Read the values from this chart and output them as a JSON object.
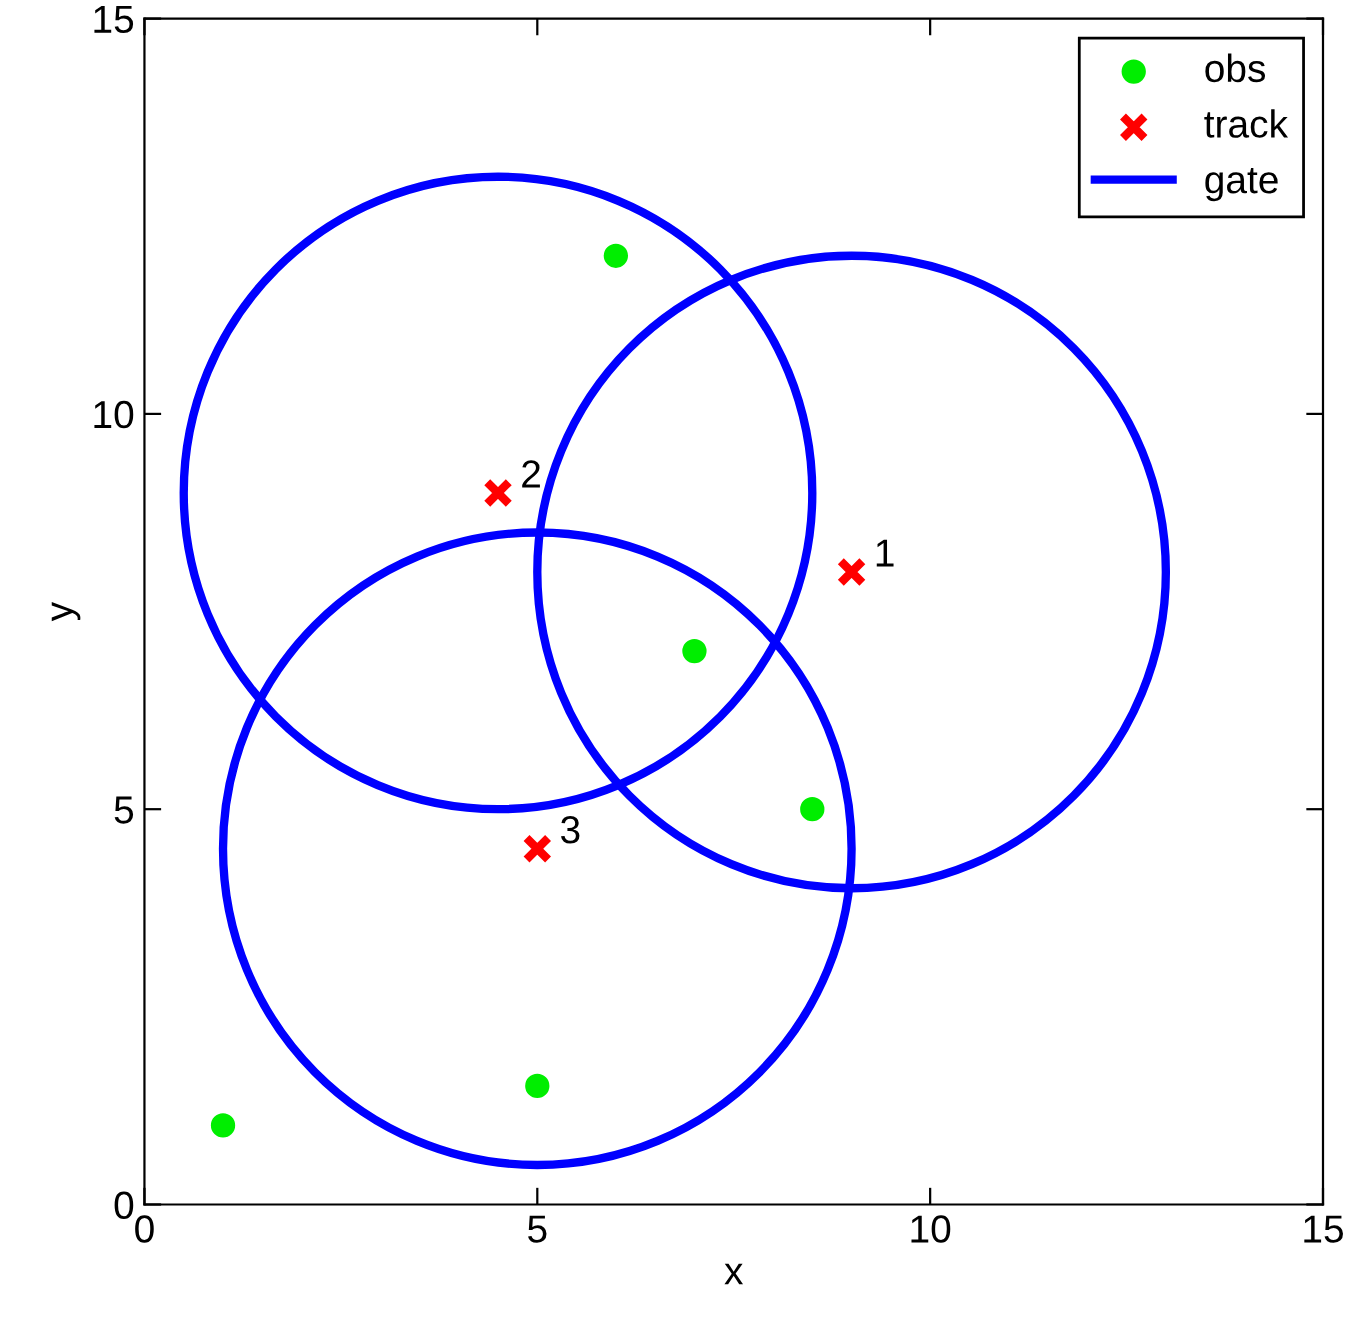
{
  "chart_data": {
    "type": "scatter",
    "xlabel": "x",
    "ylabel": "y",
    "xlim": [
      0,
      15
    ],
    "ylim": [
      0,
      15
    ],
    "xticks": [
      0,
      5,
      10,
      15
    ],
    "yticks": [
      0,
      5,
      10,
      15
    ],
    "grid": false,
    "legend": "top right",
    "series": [
      {
        "name": "obs",
        "marker": "circle",
        "color": "#00ee00",
        "x": [
          1,
          5,
          6,
          7,
          8.5
        ],
        "values": [
          1,
          1.5,
          12,
          7,
          5
        ]
      },
      {
        "name": "track",
        "marker": "cross",
        "color": "#ff0000",
        "x": [
          9,
          4.5,
          5
        ],
        "values": [
          8,
          9,
          4.5
        ]
      },
      {
        "name": "gate",
        "type": "line",
        "marker": "none",
        "line_style": "solid",
        "color": "#0000ff"
      }
    ],
    "annotations": [
      {
        "text": "1",
        "x": 9,
        "y": 8
      },
      {
        "text": "2",
        "x": 4.5,
        "y": 9
      },
      {
        "text": "3",
        "x": 5,
        "y": 4.5
      }
    ]
  }
}
